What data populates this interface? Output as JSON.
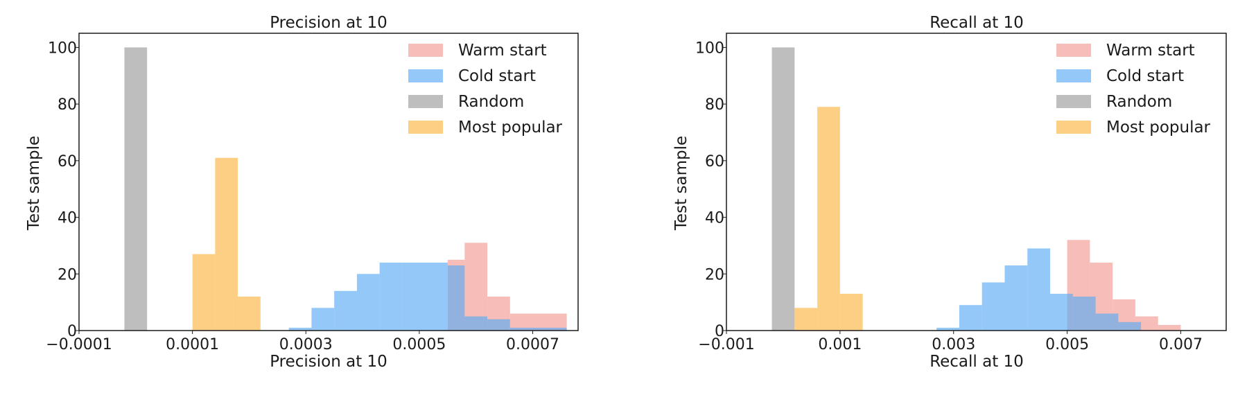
{
  "chart_data": [
    {
      "type": "bar",
      "subtype": "overlapping-histogram",
      "title": "Precision at 10",
      "xlabel": "Precision at 10",
      "ylabel": "Test sample",
      "xlim": [
        -0.0001,
        0.00078
      ],
      "ylim": [
        0,
        105
      ],
      "xticks": [
        -0.0001,
        0.0001,
        0.0003,
        0.0005,
        0.0007
      ],
      "xtick_labels": [
        "−0.0001",
        "0.0001",
        "0.0003",
        "0.0005",
        "0.0007"
      ],
      "yticks": [
        0,
        20,
        40,
        60,
        80,
        100
      ],
      "grid": false,
      "legend_position": "top-right",
      "series": [
        {
          "name": "Warm start",
          "color": "#f4a19a",
          "opacity": 0.7,
          "bins": [
            [
              0.00055,
              0.00058,
              25
            ],
            [
              0.00058,
              0.00062,
              31
            ],
            [
              0.00062,
              0.00066,
              12
            ],
            [
              0.00066,
              0.00076,
              6
            ]
          ]
        },
        {
          "name": "Cold start",
          "color": "#5aabf5",
          "opacity": 0.65,
          "bins": [
            [
              0.00027,
              0.00031,
              1
            ],
            [
              0.00031,
              0.00035,
              8
            ],
            [
              0.00035,
              0.00039,
              14
            ],
            [
              0.00039,
              0.00043,
              20
            ],
            [
              0.00043,
              0.00047,
              24
            ],
            [
              0.00047,
              0.00055,
              24
            ],
            [
              0.00055,
              0.00058,
              23
            ],
            [
              0.00058,
              0.00062,
              5
            ],
            [
              0.00062,
              0.00066,
              4
            ],
            [
              0.00066,
              0.00076,
              1
            ]
          ]
        },
        {
          "name": "Random",
          "color": "#a8a8a8",
          "opacity": 0.75,
          "bins": [
            [
              -2e-05,
              2e-05,
              100
            ]
          ]
        },
        {
          "name": "Most popular",
          "color": "#fbbf5c",
          "opacity": 0.75,
          "bins": [
            [
              0.0001,
              0.00014,
              27
            ],
            [
              0.00014,
              0.00018,
              61
            ],
            [
              0.00018,
              0.00022,
              12
            ]
          ]
        }
      ]
    },
    {
      "type": "bar",
      "subtype": "overlapping-histogram",
      "title": "Recall at 10",
      "xlabel": "Recall at 10",
      "ylabel": "Test sample",
      "xlim": [
        -0.001,
        0.0078
      ],
      "ylim": [
        0,
        105
      ],
      "xticks": [
        -0.001,
        0.001,
        0.003,
        0.005,
        0.007
      ],
      "xtick_labels": [
        "−0.001",
        "0.001",
        "0.003",
        "0.005",
        "0.007"
      ],
      "yticks": [
        0,
        20,
        40,
        60,
        80,
        100
      ],
      "grid": false,
      "legend_position": "top-right",
      "series": [
        {
          "name": "Warm start",
          "color": "#f4a19a",
          "opacity": 0.7,
          "bins": [
            [
              0.005,
              0.0054,
              32
            ],
            [
              0.0054,
              0.0058,
              24
            ],
            [
              0.0058,
              0.0062,
              11
            ],
            [
              0.0062,
              0.0066,
              5
            ],
            [
              0.0066,
              0.007,
              2
            ]
          ]
        },
        {
          "name": "Cold start",
          "color": "#5aabf5",
          "opacity": 0.65,
          "bins": [
            [
              0.0027,
              0.0031,
              1
            ],
            [
              0.0031,
              0.0035,
              9
            ],
            [
              0.0035,
              0.0039,
              17
            ],
            [
              0.0039,
              0.0043,
              23
            ],
            [
              0.0043,
              0.0047,
              29
            ],
            [
              0.0047,
              0.0051,
              13
            ],
            [
              0.0051,
              0.0055,
              12
            ],
            [
              0.0055,
              0.0059,
              6
            ],
            [
              0.0059,
              0.0063,
              3
            ]
          ]
        },
        {
          "name": "Random",
          "color": "#a8a8a8",
          "opacity": 0.75,
          "bins": [
            [
              -0.0002,
              0.0002,
              100
            ]
          ]
        },
        {
          "name": "Most popular",
          "color": "#fbbf5c",
          "opacity": 0.75,
          "bins": [
            [
              0.0002,
              0.0006,
              8
            ],
            [
              0.0006,
              0.001,
              79
            ],
            [
              0.001,
              0.0014,
              13
            ]
          ]
        }
      ]
    }
  ]
}
